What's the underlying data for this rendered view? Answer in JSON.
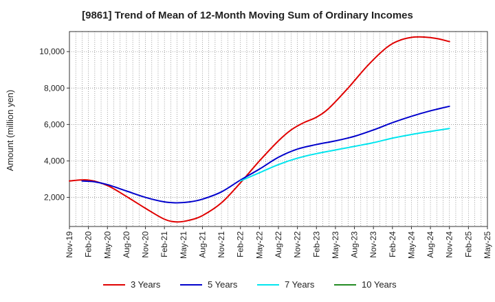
{
  "chart_data": {
    "type": "line",
    "title": "[9861]  Trend of Mean of 12-Month Moving Sum of Ordinary Incomes",
    "xlabel": "",
    "ylabel": "Amount (million yen)",
    "ylim": [
      400,
      11100
    ],
    "yticks": [
      2000,
      4000,
      6000,
      8000,
      10000
    ],
    "ytick_labels": [
      "2,000",
      "4,000",
      "6,000",
      "8,000",
      "10,000"
    ],
    "x_tick_labels": [
      "Nov-19",
      "Feb-20",
      "May-20",
      "Aug-20",
      "Nov-20",
      "Feb-21",
      "May-21",
      "Aug-21",
      "Nov-21",
      "Feb-22",
      "May-22",
      "Aug-22",
      "Nov-22",
      "Feb-23",
      "May-23",
      "Aug-23",
      "Nov-23",
      "Feb-24",
      "May-24",
      "Aug-24",
      "Nov-24",
      "Feb-25",
      "May-25"
    ],
    "x_months_total": 66,
    "grid": true,
    "legend_position": "bottom",
    "series": [
      {
        "name": "3 Years",
        "color": "#e00000",
        "points": [
          [
            0,
            2900
          ],
          [
            3,
            2950
          ],
          [
            6,
            2650
          ],
          [
            9,
            2050
          ],
          [
            12,
            1400
          ],
          [
            15,
            800
          ],
          [
            17,
            650
          ],
          [
            19,
            750
          ],
          [
            21,
            1000
          ],
          [
            24,
            1700
          ],
          [
            27,
            2800
          ],
          [
            30,
            4000
          ],
          [
            33,
            5100
          ],
          [
            35,
            5700
          ],
          [
            37,
            6100
          ],
          [
            39,
            6400
          ],
          [
            41,
            6900
          ],
          [
            44,
            8000
          ],
          [
            47,
            9200
          ],
          [
            50,
            10200
          ],
          [
            52,
            10600
          ],
          [
            54,
            10780
          ],
          [
            56,
            10800
          ],
          [
            58,
            10720
          ],
          [
            60,
            10550
          ]
        ]
      },
      {
        "name": "5 Years",
        "color": "#0000cc",
        "points": [
          [
            2,
            2900
          ],
          [
            4,
            2850
          ],
          [
            6,
            2700
          ],
          [
            9,
            2350
          ],
          [
            12,
            2000
          ],
          [
            15,
            1750
          ],
          [
            17,
            1700
          ],
          [
            19,
            1750
          ],
          [
            21,
            1900
          ],
          [
            24,
            2300
          ],
          [
            27,
            2950
          ],
          [
            30,
            3550
          ],
          [
            33,
            4200
          ],
          [
            36,
            4650
          ],
          [
            39,
            4900
          ],
          [
            42,
            5100
          ],
          [
            45,
            5350
          ],
          [
            48,
            5700
          ],
          [
            51,
            6100
          ],
          [
            54,
            6450
          ],
          [
            57,
            6750
          ],
          [
            60,
            7000
          ]
        ]
      },
      {
        "name": "7 Years",
        "color": "#00e5ee",
        "points": [
          [
            27,
            2900
          ],
          [
            30,
            3350
          ],
          [
            33,
            3800
          ],
          [
            36,
            4150
          ],
          [
            39,
            4400
          ],
          [
            42,
            4600
          ],
          [
            45,
            4800
          ],
          [
            48,
            5000
          ],
          [
            51,
            5250
          ],
          [
            54,
            5450
          ],
          [
            57,
            5620
          ],
          [
            60,
            5780
          ]
        ]
      },
      {
        "name": "10 Years",
        "color": "#228b22",
        "points": []
      }
    ]
  }
}
